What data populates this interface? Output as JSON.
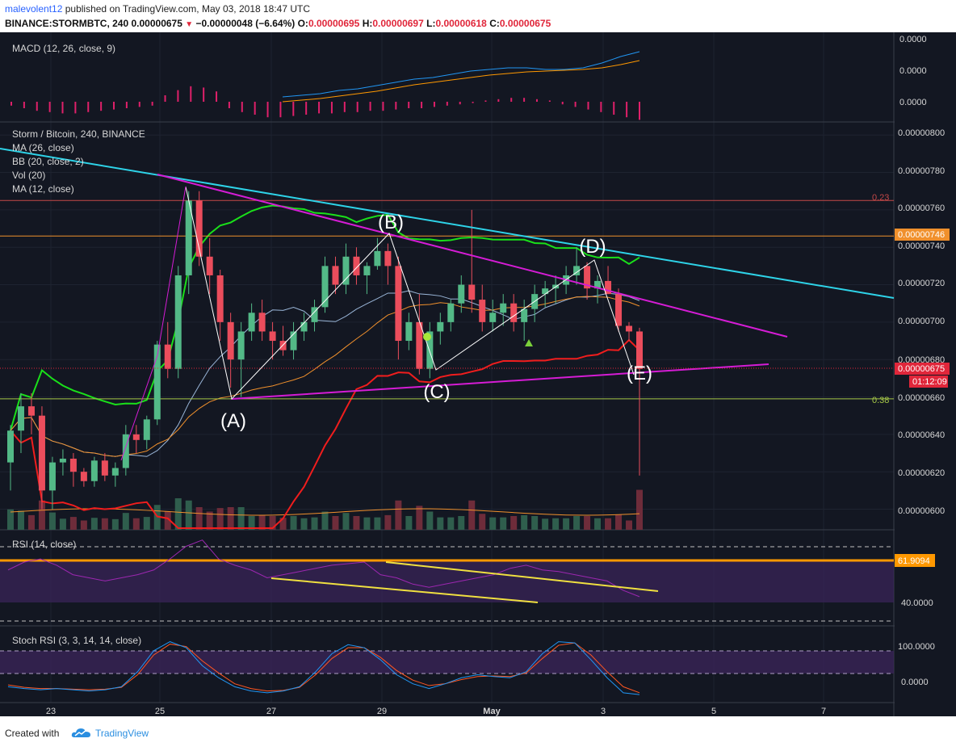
{
  "header": {
    "publisher": "malevolent12",
    "published_text": "published on TradingView.com, May 03, 2018 18:47 UTC",
    "symbol": "BINANCE:STORMBTC, 240",
    "last": "0.00000675",
    "change_arrow": "▼",
    "change": "−0.00000048 (−6.64%)",
    "o_label": "O:",
    "o": "0.00000695",
    "h_label": "H:",
    "h": "0.00000697",
    "l_label": "L:",
    "l": "0.00000618",
    "c_label": "C:",
    "c": "0.00000675"
  },
  "colors": {
    "background": "#131722",
    "bull": "#53b987",
    "bear": "#eb4d5c",
    "trendline_cyan": "#2ed3e8",
    "pattern_magenta": "#d51cd5",
    "bb_upper": "#1ae01a",
    "bb_lower": "#f01d1d",
    "ma26": "#f0902c",
    "ma12": "#9ab6d8",
    "rsi_line": "#9c27b0",
    "rsi_level": "#ff9800",
    "divergence": "#f0e040",
    "macd_line": "#2196f3",
    "signal_line": "#ff9800",
    "histogram": "#e0206a"
  },
  "panes": {
    "macd": {
      "label": "MACD (12, 26, close, 9)",
      "ticks": [
        "0.0000",
        "0.0000",
        "0.0000"
      ]
    },
    "price": {
      "labels": [
        "Storm / Bitcoin, 240, BINANCE",
        "MA (26, close)",
        "BB (20, close, 2)",
        "Vol (20)",
        "MA (12, close)"
      ],
      "ticks": [
        "0.00000800",
        "0.00000780",
        "0.00000760",
        "0.00000740",
        "0.00000720",
        "0.00000700",
        "0.00000680",
        "0.00000660",
        "0.00000640",
        "0.00000620",
        "0.00000600"
      ],
      "last_tag": "0.00000675",
      "level_tag": "0.00000746",
      "countdown": "01:12:09",
      "fib_top": "0.23",
      "fib_bottom": "0.38"
    },
    "rsi": {
      "label": "RSI (14, close)",
      "tag": "61.9094",
      "tick": "40.0000"
    },
    "stoch": {
      "label": "Stoch RSI (3, 3, 14, 14, close)",
      "ticks": [
        "100.0000",
        "0.0000"
      ]
    }
  },
  "waves": [
    "(A)",
    "(B)",
    "(C)",
    "(D)",
    "(E)"
  ],
  "x_axis": [
    "23",
    "25",
    "27",
    "29",
    "May",
    "3",
    "5",
    "7"
  ],
  "footer": {
    "created": "Created with",
    "brand": "TradingView",
    "logo_icon": "tradingview-cloud-icon"
  },
  "chart_data": [
    {
      "type": "candlestick",
      "title": "Storm / Bitcoin, 240, BINANCE",
      "x_ticks": [
        "23",
        "25",
        "27",
        "29",
        "May",
        "3",
        "5",
        "7"
      ],
      "y_ticks": [
        "0.00000600",
        "0.00000620",
        "0.00000640",
        "0.00000660",
        "0.00000680",
        "0.00000700",
        "0.00000720",
        "0.00000740",
        "0.00000760",
        "0.00000780",
        "0.00000800"
      ],
      "ylim": [
        5.89e-06,
        8.07e-06
      ],
      "last_price": 6.75e-06,
      "horizontal_levels": [
        7.46e-06,
        7.65e-06,
        6.59e-06
      ],
      "ohlc": [
        [
          6.25e-06,
          6.45e-06,
          6.1e-06,
          6.42e-06
        ],
        [
          6.42e-06,
          6.62e-06,
          6.3e-06,
          6.55e-06
        ],
        [
          6.55e-06,
          6.62e-06,
          6.4e-06,
          6.5e-06
        ],
        [
          6.5e-06,
          6.55e-06,
          6e-06,
          6.1e-06
        ],
        [
          6.1e-06,
          6.28e-06,
          6e-06,
          6.25e-06
        ],
        [
          6.25e-06,
          6.32e-06,
          6.18e-06,
          6.27e-06
        ],
        [
          6.27e-06,
          6.3e-06,
          6.12e-06,
          6.2e-06
        ],
        [
          6.2e-06,
          6.22e-06,
          6.12e-06,
          6.15e-06
        ],
        [
          6.15e-06,
          6.28e-06,
          6.12e-06,
          6.26e-06
        ],
        [
          6.26e-06,
          6.3e-06,
          6.15e-06,
          6.18e-06
        ],
        [
          6.18e-06,
          6.25e-06,
          6.12e-06,
          6.22e-06
        ],
        [
          6.22e-06,
          6.45e-06,
          6.18e-06,
          6.4e-06
        ],
        [
          6.4e-06,
          6.45e-06,
          6.3e-06,
          6.37e-06
        ],
        [
          6.37e-06,
          6.5e-06,
          6.32e-06,
          6.48e-06
        ],
        [
          6.48e-06,
          6.9e-06,
          6.45e-06,
          6.88e-06
        ],
        [
          6.88e-06,
          7e-06,
          6.7e-06,
          6.75e-06
        ],
        [
          6.75e-06,
          7.3e-06,
          6.7e-06,
          7.25e-06
        ],
        [
          7.25e-06,
          7.7e-06,
          7.15e-06,
          7.65e-06
        ],
        [
          7.65e-06,
          7.7e-06,
          7.3e-06,
          7.35e-06
        ],
        [
          7.35e-06,
          7.45e-06,
          7.15e-06,
          7.25e-06
        ],
        [
          7.25e-06,
          7.28e-06,
          6.9e-06,
          7e-06
        ],
        [
          7e-06,
          7.05e-06,
          6.65e-06,
          6.8e-06
        ],
        [
          6.8e-06,
          7e-06,
          6.6e-06,
          6.95e-06
        ],
        [
          6.95e-06,
          7.1e-06,
          6.9e-06,
          7.05e-06
        ],
        [
          7.05e-06,
          7.12e-06,
          6.9e-06,
          6.95e-06
        ],
        [
          6.95e-06,
          7e-06,
          6.8e-06,
          6.9e-06
        ],
        [
          6.9e-06,
          6.98e-06,
          6.82e-06,
          6.85e-06
        ],
        [
          6.85e-06,
          7e-06,
          6.8e-06,
          6.95e-06
        ],
        [
          6.95e-06,
          7.05e-06,
          6.9e-06,
          7e-06
        ],
        [
          7e-06,
          7.12e-06,
          6.95e-06,
          7.08e-06
        ],
        [
          7.08e-06,
          7.35e-06,
          7.05e-06,
          7.3e-06
        ],
        [
          7.3e-06,
          7.35e-06,
          7.15e-06,
          7.2e-06
        ],
        [
          7.2e-06,
          7.42e-06,
          7.15e-06,
          7.35e-06
        ],
        [
          7.35e-06,
          7.4e-06,
          7.2e-06,
          7.25e-06
        ],
        [
          7.25e-06,
          7.32e-06,
          7.15e-06,
          7.3e-06
        ],
        [
          7.3e-06,
          7.45e-06,
          7.28e-06,
          7.38e-06
        ],
        [
          7.38e-06,
          7.42e-06,
          7.2e-06,
          7.3e-06
        ],
        [
          7.3e-06,
          7.35e-06,
          6.8e-06,
          6.9e-06
        ],
        [
          6.9e-06,
          7.05e-06,
          6.85e-06,
          7e-06
        ],
        [
          7e-06,
          7.15e-06,
          6.72e-06,
          6.75e-06
        ],
        [
          6.75e-06,
          7e-06,
          6.7e-06,
          6.95e-06
        ],
        [
          6.95e-06,
          7.05e-06,
          6.88e-06,
          7e-06
        ],
        [
          7e-06,
          7.12e-06,
          6.95e-06,
          7.1e-06
        ],
        [
          7.1e-06,
          7.25e-06,
          7.05e-06,
          7.2e-06
        ],
        [
          7.2e-06,
          7.6e-06,
          7.05e-06,
          7.12e-06
        ],
        [
          7.12e-06,
          7.2e-06,
          6.95e-06,
          7e-06
        ],
        [
          7e-06,
          7.12e-06,
          6.95e-06,
          7.05e-06
        ],
        [
          7.05e-06,
          7.15e-06,
          6.98e-06,
          7.1e-06
        ],
        [
          7.1e-06,
          7.15e-06,
          6.95e-06,
          7e-06
        ],
        [
          7e-06,
          7.12e-06,
          6.9e-06,
          7.07e-06
        ],
        [
          7.07e-06,
          7.2e-06,
          7e-06,
          7.15e-06
        ],
        [
          7.15e-06,
          7.22e-06,
          7.08e-06,
          7.18e-06
        ],
        [
          7.18e-06,
          7.25e-06,
          7.1e-06,
          7.2e-06
        ],
        [
          7.2e-06,
          7.3e-06,
          7.15e-06,
          7.25e-06
        ],
        [
          7.25e-06,
          7.4e-06,
          7.2e-06,
          7.3e-06
        ],
        [
          7.3e-06,
          7.32e-06,
          7.12e-06,
          7.18e-06
        ],
        [
          7.18e-06,
          7.25e-06,
          7.1e-06,
          7.22e-06
        ],
        [
          7.22e-06,
          7.3e-06,
          7.15e-06,
          7.15e-06
        ],
        [
          7.15e-06,
          7.18e-06,
          6.95e-06,
          6.98e-06
        ],
        [
          6.98e-06,
          7e-06,
          6.9e-06,
          6.95e-06
        ],
        [
          6.95e-06,
          6.97e-06,
          6.18e-06,
          6.75e-06
        ]
      ],
      "wave_points": [
        {
          "label": "(A)",
          "value": 6.59e-06
        },
        {
          "label": "(B)",
          "value": 7.45e-06
        },
        {
          "label": "(C)",
          "value": 6.74e-06
        },
        {
          "label": "(D)",
          "value": 7.32e-06
        },
        {
          "label": "(E)",
          "value": 6.86e-06
        }
      ]
    },
    {
      "type": "line",
      "title": "RSI (14, close)",
      "ylim": [
        20,
        80
      ],
      "levels": [
        70,
        30
      ],
      "marked_level": 61.9094,
      "series": [
        {
          "values": [
            55,
            60,
            62,
            58,
            52,
            50,
            48,
            50,
            52,
            55,
            62,
            70,
            74,
            62,
            58,
            55,
            50,
            52,
            54,
            56,
            58,
            59,
            60,
            52,
            50,
            46,
            44,
            46,
            48,
            50,
            52,
            56,
            58,
            55,
            54,
            52,
            50,
            48,
            42,
            38
          ]
        }
      ]
    },
    {
      "type": "line",
      "title": "Stoch RSI (3, 3, 14, 14, close)",
      "ylim": [
        -10,
        115
      ],
      "levels": [
        80,
        20
      ],
      "series": [
        {
          "values": [
            15,
            12,
            10,
            12,
            10,
            8,
            10,
            15,
            40,
            75,
            90,
            80,
            50,
            30,
            15,
            8,
            5,
            8,
            15,
            40,
            70,
            85,
            80,
            60,
            35,
            20,
            12,
            20,
            30,
            35,
            32,
            30,
            40,
            70,
            90,
            88,
            60,
            30,
            5,
            2
          ]
        },
        {
          "values": [
            18,
            14,
            12,
            12,
            11,
            10,
            11,
            14,
            35,
            68,
            86,
            82,
            58,
            38,
            20,
            12,
            8,
            9,
            14,
            35,
            62,
            80,
            80,
            64,
            42,
            26,
            17,
            20,
            27,
            32,
            33,
            32,
            38,
            62,
            84,
            88,
            68,
            40,
            15,
            5
          ]
        }
      ]
    },
    {
      "type": "line",
      "title": "MACD (12, 26, close, 9)",
      "series": [
        {
          "values": [
            80,
            78,
            76,
            72,
            70,
            66,
            62,
            58,
            56,
            52,
            48,
            46,
            44,
            44,
            46,
            46,
            44,
            38,
            30,
            24
          ]
        },
        {
          "values": [
            86,
            84,
            82,
            79,
            76,
            73,
            69,
            65,
            62,
            59,
            56,
            53,
            51,
            49,
            48,
            47,
            46,
            44,
            40,
            35
          ]
        }
      ],
      "histogram": [
        -3,
        -5,
        -7,
        -8,
        -9,
        -9,
        -8,
        -7,
        -6,
        -5,
        -4,
        -3,
        5,
        9,
        12,
        11,
        8,
        -5,
        -8,
        -10,
        -12,
        -12,
        -11,
        -10,
        -9,
        -9,
        -8,
        -8,
        -7,
        -7,
        -6,
        -5,
        -5,
        -4,
        -3,
        -2,
        -1,
        1,
        2,
        3,
        3,
        2,
        1,
        -2,
        -4,
        -6,
        -8,
        -10,
        -12,
        -14
      ]
    }
  ]
}
